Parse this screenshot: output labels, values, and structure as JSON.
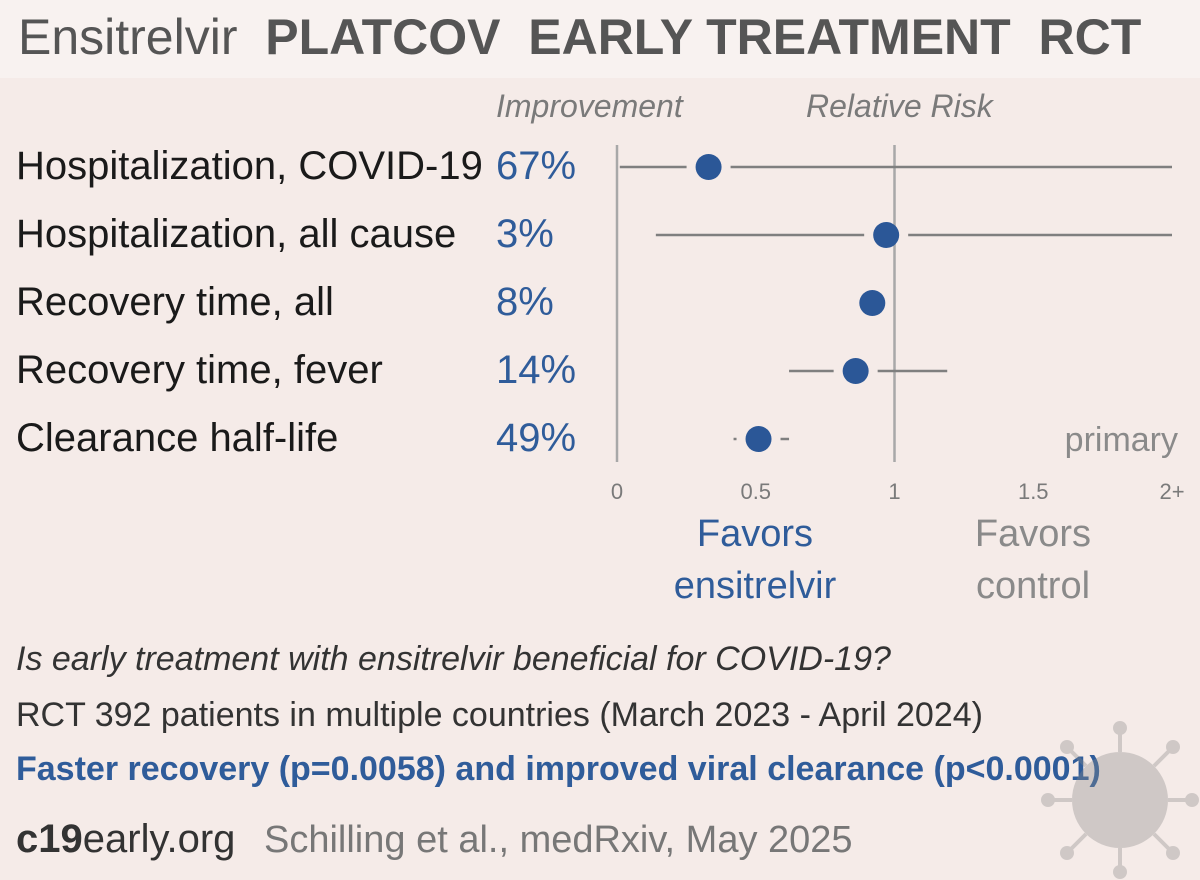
{
  "title": {
    "drug": "Ensitrelvir",
    "rest": "PLATCOV  EARLY TREATMENT  RCT"
  },
  "headers": {
    "improvement": "Improvement",
    "relative_risk": "Relative Risk"
  },
  "chart_data": {
    "type": "forest",
    "xlim": [
      0,
      2
    ],
    "reference_line": 1,
    "x_ticks": [
      {
        "value": 0,
        "label": "0"
      },
      {
        "value": 0.5,
        "label": "0.5"
      },
      {
        "value": 1,
        "label": "1"
      },
      {
        "value": 1.5,
        "label": "1.5"
      },
      {
        "value": 2,
        "label": "2+"
      }
    ],
    "rows": [
      {
        "label": "Hospitalization, COVID-19",
        "improvement": "67%",
        "rr": 0.33,
        "ci_low": 0.01,
        "ci_high": 2.0,
        "ci_capped": true,
        "note": ""
      },
      {
        "label": "Hospitalization, all cause",
        "improvement": "3%",
        "rr": 0.97,
        "ci_low": 0.14,
        "ci_high": 2.0,
        "ci_capped": true,
        "note": ""
      },
      {
        "label": "Recovery time, all",
        "improvement": "8%",
        "rr": 0.92,
        "ci_low": 0.92,
        "ci_high": 0.92,
        "ci_capped": false,
        "note": ""
      },
      {
        "label": "Recovery time, fever",
        "improvement": "14%",
        "rr": 0.86,
        "ci_low": 0.62,
        "ci_high": 1.19,
        "ci_capped": false,
        "note": ""
      },
      {
        "label": "Clearance half-life",
        "improvement": "49%",
        "rr": 0.51,
        "ci_low": 0.42,
        "ci_high": 0.62,
        "ci_capped": false,
        "note": "primary"
      }
    ],
    "favors_left": "Favors\nensitrelvir",
    "favors_right": "Favors\ncontrol",
    "colors": {
      "point": "#2b5797",
      "ci_line": "#7f7f7f",
      "axis_line": "#a8a8a8",
      "improvement_text": "#2f5c9a",
      "favors_left": "#2f5c9a",
      "favors_right": "#8a8a8a"
    }
  },
  "footer": {
    "question": "Is early treatment with ensitrelvir beneficial for COVID-19?",
    "design": "RCT 392 patients in multiple countries (March 2023 - April 2024)",
    "conclusion": "Faster recovery (p=0.0058) and improved viral clearance (p<0.0001)",
    "site_num": "c19",
    "site_rest": "early.org",
    "citation": "Schilling et al., medRxiv, May 2025"
  },
  "icons": {
    "virus": "virus-icon"
  }
}
